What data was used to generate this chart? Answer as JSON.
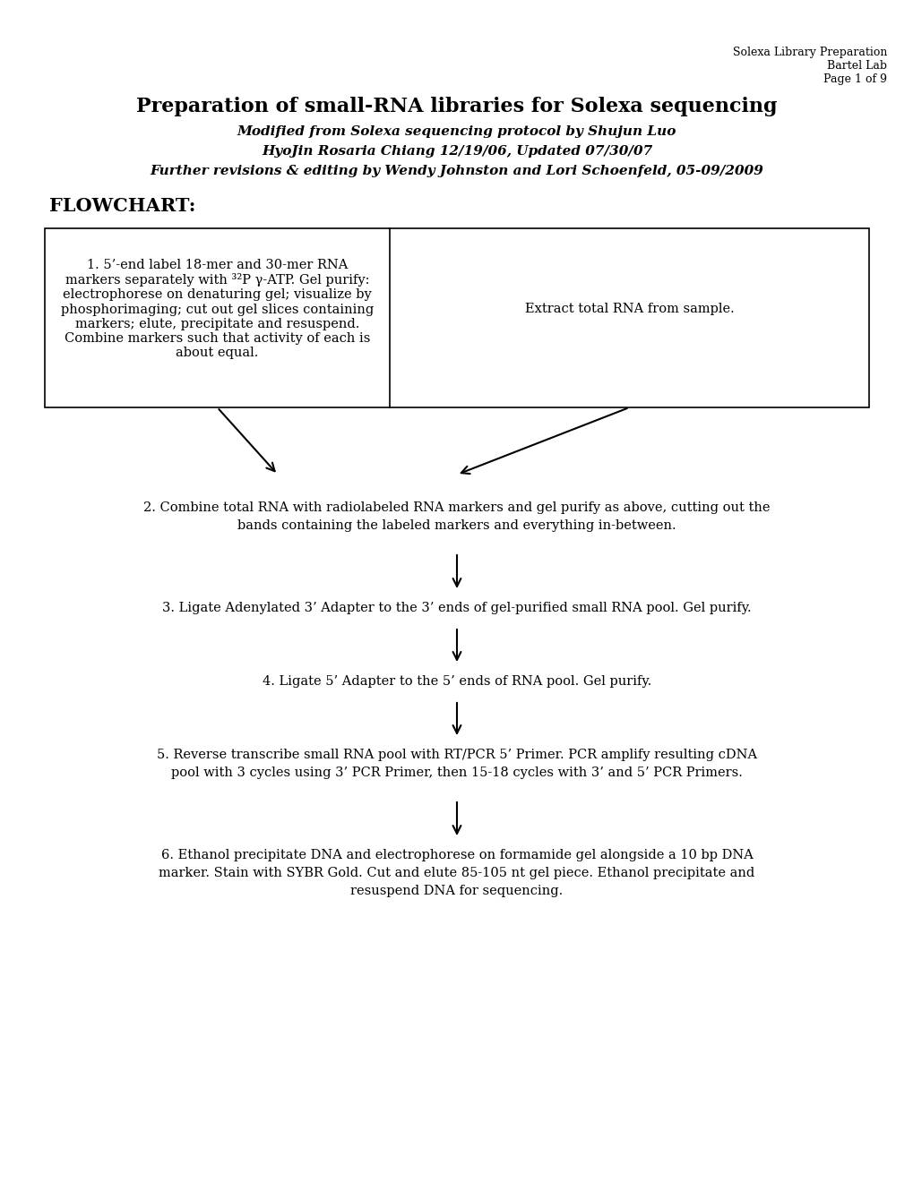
{
  "bg_color": "#ffffff",
  "header_right_lines": [
    "Solexa Library Preparation",
    "Bartel Lab",
    "Page 1 of 9"
  ],
  "main_title": "Preparation of small-RNA libraries for Solexa sequencing",
  "subtitle1": "Modified from Solexa sequencing protocol by Shujun Luo",
  "subtitle2": "HyoJin Rosaria Chiang 12/19/06, Updated 07/30/07",
  "subtitle3": "Further revisions & editing by Wendy Johnston and Lori Schoenfeld, 05-09/2009",
  "flowchart_label": "FLOWCHART:",
  "box1_left_bold": "1.",
  "box1_left_text": " 5’-end label 18-mer and 30-mer RNA\nmarkers separately with ³²P γ-ATP. Gel purify:\nelectrophorese on denaturing gel; visualize by\nphosphorimaging; cut out gel slices containing\nmarkers; elute, precipitate and resuspend.\nCombine markers such that activity of each is\nabout equal.",
  "box1_right_text": "Extract total RNA from sample.",
  "step2_line1": "2. Combine total RNA with radiolabeled RNA markers and gel purify as above, cutting out the",
  "step2_line2": "bands containing the labeled markers and everything in-between.",
  "step3_text": "3. Ligate Adenylated 3’ Adapter to the 3’ ends of gel-purified small RNA pool. Gel purify.",
  "step4_text": "4. Ligate 5’ Adapter to the 5’ ends of RNA pool. Gel purify.",
  "step5_line1": "5. Reverse transcribe small RNA pool with RT/PCR 5’ Primer. PCR amplify resulting cDNA",
  "step5_line2": "pool with 3 cycles using 3’ PCR Primer, then 15-18 cycles with 3’ and 5’ PCR Primers.",
  "step6_line1": "6. Ethanol precipitate DNA and electrophorese on formamide gel alongside a 10 bp DNA",
  "step6_line2": "marker. Stain with SYBR Gold. Cut and elute 85-105 nt gel piece. Ethanol precipitate and",
  "step6_line3": "resuspend DNA for sequencing.",
  "text_color": "#000000",
  "box_line_color": "#000000",
  "font_size_header": 9,
  "font_size_title": 16,
  "font_size_subtitle": 11,
  "font_size_flowchart": 15,
  "font_size_body": 11
}
